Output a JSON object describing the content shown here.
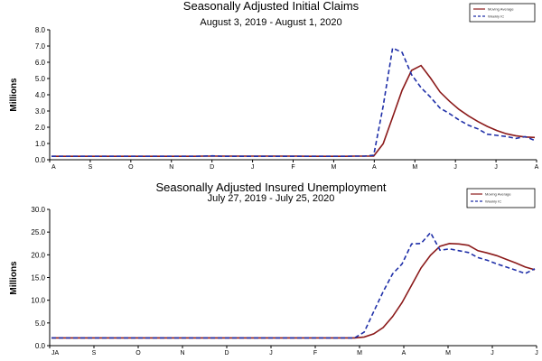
{
  "colors": {
    "moving_average": "#8b1a1a",
    "weekly": "#1f2fa8"
  },
  "chart_data": [
    {
      "type": "line",
      "title": "Seasonally Adjusted Initial Claims",
      "subtitle": "August 3, 2019 - August 1, 2020",
      "xlabel": "",
      "ylabel": "Millions",
      "ylim": [
        0,
        8
      ],
      "y_ticks": [
        "0.0",
        "1.0",
        "2.0",
        "3.0",
        "4.0",
        "5.0",
        "6.0",
        "7.0",
        "8.0"
      ],
      "x_ticks": [
        "A",
        "S",
        "O",
        "N",
        "D",
        "J",
        "F",
        "M",
        "A",
        "M",
        "J",
        "J",
        "A"
      ],
      "grid": false,
      "legend_position": "top-right",
      "legend": [
        "Moving Average",
        "Weekly IC"
      ],
      "x": [
        0,
        1,
        2,
        3,
        4,
        5,
        6,
        7,
        8,
        9,
        10,
        11,
        12,
        13,
        14,
        15,
        16,
        17,
        18,
        19,
        20,
        21,
        22,
        23,
        24,
        25,
        26,
        27,
        28,
        29,
        30,
        31,
        32,
        33,
        34,
        35,
        36,
        37,
        38,
        39,
        40,
        41,
        42,
        43,
        44,
        45,
        46,
        47,
        48,
        49,
        50,
        51
      ],
      "series": [
        {
          "name": "Moving Average",
          "values": [
            0.21,
            0.21,
            0.21,
            0.21,
            0.21,
            0.21,
            0.21,
            0.21,
            0.21,
            0.21,
            0.21,
            0.21,
            0.21,
            0.21,
            0.21,
            0.21,
            0.22,
            0.22,
            0.22,
            0.22,
            0.22,
            0.22,
            0.22,
            0.22,
            0.22,
            0.22,
            0.22,
            0.21,
            0.21,
            0.21,
            0.21,
            0.21,
            0.22,
            0.22,
            0.23,
            0.99,
            2.61,
            4.27,
            5.5,
            5.8,
            5.03,
            4.17,
            3.6,
            3.1,
            2.7,
            2.35,
            2.05,
            1.8,
            1.6,
            1.48,
            1.4,
            1.37
          ]
        },
        {
          "name": "Weekly IC",
          "values": [
            0.21,
            0.21,
            0.21,
            0.21,
            0.21,
            0.21,
            0.21,
            0.21,
            0.21,
            0.21,
            0.21,
            0.21,
            0.21,
            0.21,
            0.21,
            0.21,
            0.22,
            0.24,
            0.21,
            0.21,
            0.21,
            0.21,
            0.21,
            0.21,
            0.21,
            0.21,
            0.21,
            0.21,
            0.21,
            0.21,
            0.21,
            0.21,
            0.22,
            0.22,
            0.28,
            3.31,
            6.87,
            6.61,
            5.24,
            4.44,
            3.85,
            3.18,
            2.84,
            2.45,
            2.12,
            1.9,
            1.57,
            1.5,
            1.43,
            1.31,
            1.42,
            1.19
          ]
        }
      ]
    },
    {
      "type": "line",
      "title": "Seasonally Adjusted Insured Unemployment",
      "subtitle": "July 27, 2019 - July 25, 2020",
      "xlabel": "",
      "ylabel": "Millions",
      "ylim": [
        0,
        30
      ],
      "y_ticks": [
        "0.0",
        "5.0",
        "10.0",
        "15.0",
        "20.0",
        "25.0",
        "30.0"
      ],
      "x_ticks": [
        "JA",
        "S",
        "O",
        "N",
        "D",
        "J",
        "F",
        "M",
        "A",
        "M",
        "J",
        "J"
      ],
      "grid": false,
      "legend_position": "top-right",
      "legend": [
        "Moving Average",
        "Weekly IC"
      ],
      "x": [
        0,
        1,
        2,
        3,
        4,
        5,
        6,
        7,
        8,
        9,
        10,
        11,
        12,
        13,
        14,
        15,
        16,
        17,
        18,
        19,
        20,
        21,
        22,
        23,
        24,
        25,
        26,
        27,
        28,
        29,
        30,
        31,
        32,
        33,
        34,
        35,
        36,
        37,
        38,
        39,
        40,
        41,
        42,
        43,
        44,
        45,
        46,
        47,
        48,
        49,
        50,
        51
      ],
      "series": [
        {
          "name": "Moving Average",
          "values": [
            1.7,
            1.7,
            1.7,
            1.7,
            1.7,
            1.7,
            1.7,
            1.7,
            1.7,
            1.7,
            1.7,
            1.7,
            1.7,
            1.7,
            1.7,
            1.7,
            1.7,
            1.7,
            1.7,
            1.7,
            1.7,
            1.7,
            1.7,
            1.7,
            1.7,
            1.7,
            1.7,
            1.7,
            1.7,
            1.7,
            1.7,
            1.7,
            1.7,
            1.9,
            2.6,
            4.0,
            6.4,
            9.5,
            13.3,
            17.1,
            19.9,
            21.9,
            22.5,
            22.4,
            22.1,
            20.9,
            20.4,
            19.8,
            19.0,
            18.2,
            17.3,
            16.7
          ]
        },
        {
          "name": "Weekly IC",
          "values": [
            1.7,
            1.7,
            1.7,
            1.7,
            1.7,
            1.7,
            1.7,
            1.7,
            1.7,
            1.7,
            1.7,
            1.7,
            1.7,
            1.7,
            1.7,
            1.7,
            1.7,
            1.7,
            1.7,
            1.7,
            1.7,
            1.7,
            1.7,
            1.7,
            1.7,
            1.7,
            1.7,
            1.7,
            1.7,
            1.7,
            1.7,
            1.7,
            1.7,
            3.0,
            7.5,
            11.9,
            15.8,
            18.0,
            22.4,
            22.5,
            24.9,
            21.0,
            21.3,
            20.9,
            20.5,
            19.4,
            18.8,
            18.0,
            17.3,
            16.6,
            15.9,
            16.9
          ]
        }
      ]
    }
  ]
}
